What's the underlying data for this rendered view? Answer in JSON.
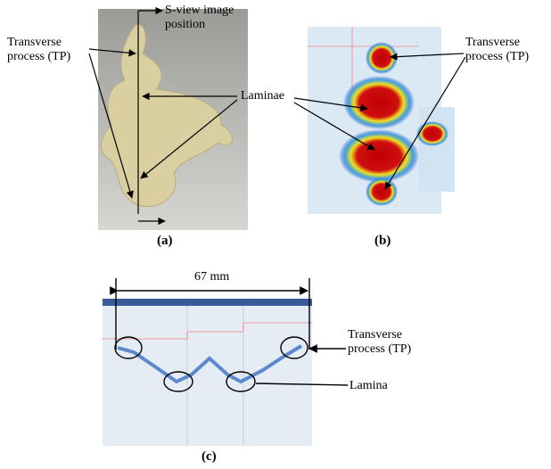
{
  "panels": [
    {
      "label": "(a)",
      "annotations": [
        "Transverse process (TP)",
        "S-view image position",
        "Laminae"
      ]
    },
    {
      "label": "(b)",
      "annotations": [
        "Transverse process (TP)"
      ]
    },
    {
      "label": "(c)",
      "annotations": [
        "67 mm",
        "Transverse process (TP)",
        "Lamina"
      ]
    }
  ]
}
